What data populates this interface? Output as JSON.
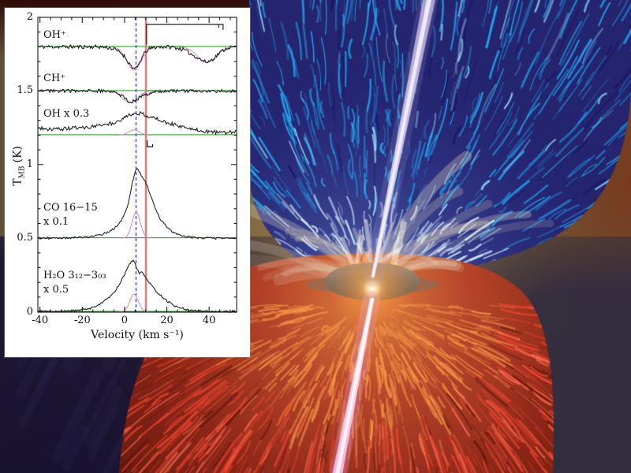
{
  "chart_data": {
    "type": "line",
    "title": "",
    "xlabel": "Velocity (km s⁻¹)",
    "ylabel": {
      "main": "T",
      "sub": "MB",
      "unit": "(K)"
    },
    "xlim": [
      -41,
      53
    ],
    "ylim": [
      0,
      2
    ],
    "grid": false,
    "x_ticks": [
      -40,
      -20,
      0,
      20,
      40
    ],
    "x_tick_labels": [
      "-40",
      "-20",
      "0",
      "20",
      "40"
    ],
    "x_minor_step": 5,
    "y_ticks": [
      0,
      0.5,
      1,
      1.5,
      2
    ],
    "y_tick_labels": [
      "0",
      "0.5",
      "1",
      "1.5",
      "2"
    ],
    "y_minor_step": 0.1,
    "line_color": "#1a1a1a",
    "baseline_color": "#1b9a1b",
    "model_color": "#d884c8",
    "markers": {
      "source_velocity_line": {
        "v": 5.4,
        "color": "#3a3ad2",
        "style": "dashed"
      },
      "red_line": {
        "v": 10.1,
        "color": "#cd6a6a",
        "style": "solid"
      },
      "hyperfine_bracket": {
        "v_from": 10.4,
        "v_to": 46.6,
        "T": 1.952,
        "tick_v": 44.5
      },
      "angle_marker": {
        "v": 10.7,
        "T_top": 1.165,
        "T_bottom": 1.122,
        "v_foot": 13.3
      }
    },
    "series": [
      {
        "label": "OH⁺",
        "baseline": 1.8,
        "noise": 0.013,
        "model": [
          {
            "center": 4.5,
            "amp": -0.155,
            "sigma": 3.5
          },
          {
            "center": 39,
            "amp": -0.105,
            "sigma": 4.5
          }
        ],
        "anchors": [
          [
            -41,
            1.8
          ],
          [
            -30,
            1.8
          ],
          [
            -20,
            1.8
          ],
          [
            -12,
            1.8
          ],
          [
            -8,
            1.795
          ],
          [
            -5,
            1.785
          ],
          [
            -2,
            1.762
          ],
          [
            0,
            1.735
          ],
          [
            2,
            1.69
          ],
          [
            4,
            1.657
          ],
          [
            5,
            1.645
          ],
          [
            6,
            1.662
          ],
          [
            7,
            1.69
          ],
          [
            8,
            1.72
          ],
          [
            10,
            1.768
          ],
          [
            12,
            1.788
          ],
          [
            15,
            1.798
          ],
          [
            20,
            1.8
          ],
          [
            24,
            1.795
          ],
          [
            28,
            1.78
          ],
          [
            31,
            1.755
          ],
          [
            34,
            1.73
          ],
          [
            37,
            1.705
          ],
          [
            39,
            1.695
          ],
          [
            41,
            1.71
          ],
          [
            43,
            1.732
          ],
          [
            45,
            1.76
          ],
          [
            47,
            1.78
          ],
          [
            49,
            1.795
          ],
          [
            53,
            1.8
          ]
        ]
      },
      {
        "label": "CH⁺",
        "baseline": 1.5,
        "noise": 0.011,
        "model": [
          {
            "center": 2.5,
            "amp": -0.08,
            "sigma": 3.5
          }
        ],
        "anchors": [
          [
            -41,
            1.5
          ],
          [
            -20,
            1.5
          ],
          [
            -10,
            1.5
          ],
          [
            -6,
            1.495
          ],
          [
            -3,
            1.48
          ],
          [
            0,
            1.455
          ],
          [
            2,
            1.432
          ],
          [
            3,
            1.425
          ],
          [
            5,
            1.437
          ],
          [
            7,
            1.455
          ],
          [
            9,
            1.47
          ],
          [
            12,
            1.487
          ],
          [
            15,
            1.495
          ],
          [
            20,
            1.5
          ],
          [
            30,
            1.5
          ],
          [
            41,
            1.5
          ],
          [
            53,
            1.5
          ]
        ]
      },
      {
        "label": "OH x 0.3",
        "baseline": 1.2,
        "noise": 0.013,
        "model": [
          {
            "center": 4.5,
            "amp": 0.035,
            "sigma": 2.5
          }
        ],
        "anchors": [
          [
            -41,
            1.252
          ],
          [
            -35,
            1.238
          ],
          [
            -30,
            1.242
          ],
          [
            -25,
            1.247
          ],
          [
            -20,
            1.251
          ],
          [
            -15,
            1.257
          ],
          [
            -10,
            1.266
          ],
          [
            -6,
            1.28
          ],
          [
            -3,
            1.3
          ],
          [
            0,
            1.317
          ],
          [
            2,
            1.332
          ],
          [
            4,
            1.345
          ],
          [
            6,
            1.35
          ],
          [
            8,
            1.345
          ],
          [
            10,
            1.336
          ],
          [
            13,
            1.32
          ],
          [
            16,
            1.305
          ],
          [
            20,
            1.285
          ],
          [
            24,
            1.269
          ],
          [
            28,
            1.255
          ],
          [
            32,
            1.241
          ],
          [
            36,
            1.23
          ],
          [
            40,
            1.224
          ],
          [
            45,
            1.216
          ],
          [
            50,
            1.219
          ],
          [
            53,
            1.221
          ]
        ]
      },
      {
        "label": "CO 16−15",
        "scale_label": "x 0.1",
        "baseline": 0.5,
        "noise": 0.007,
        "model": [
          {
            "center": 5.5,
            "amp": 0.175,
            "sigma": 2
          }
        ],
        "anchors": [
          [
            -41,
            0.5
          ],
          [
            -30,
            0.5
          ],
          [
            -25,
            0.502
          ],
          [
            -20,
            0.505
          ],
          [
            -16,
            0.51
          ],
          [
            -12,
            0.52
          ],
          [
            -9,
            0.535
          ],
          [
            -6,
            0.556
          ],
          [
            -4,
            0.576
          ],
          [
            -2,
            0.61
          ],
          [
            0,
            0.66
          ],
          [
            1,
            0.7
          ],
          [
            2,
            0.755
          ],
          [
            3,
            0.83
          ],
          [
            4,
            0.9
          ],
          [
            5,
            0.952
          ],
          [
            6,
            0.975
          ],
          [
            7,
            0.955
          ],
          [
            8,
            0.925
          ],
          [
            9,
            0.905
          ],
          [
            10,
            0.878
          ],
          [
            11,
            0.84
          ],
          [
            12,
            0.8
          ],
          [
            13,
            0.76
          ],
          [
            14,
            0.72
          ],
          [
            15,
            0.685
          ],
          [
            16,
            0.655
          ],
          [
            17,
            0.63
          ],
          [
            18,
            0.61
          ],
          [
            20,
            0.576
          ],
          [
            22,
            0.55
          ],
          [
            24,
            0.535
          ],
          [
            26,
            0.52
          ],
          [
            28,
            0.512
          ],
          [
            30,
            0.508
          ],
          [
            34,
            0.503
          ],
          [
            40,
            0.5
          ],
          [
            47,
            0.498
          ],
          [
            53,
            0.5
          ]
        ]
      },
      {
        "label": "H₂O 3₁₂−3₀₃",
        "scale_label": "x 0.5",
        "baseline": 0,
        "noise": 0.007,
        "model": [
          {
            "center": 4.5,
            "amp": 0.12,
            "sigma": 2
          }
        ],
        "anchors": [
          [
            -41,
            0.002
          ],
          [
            -30,
            0.003
          ],
          [
            -25,
            0.006
          ],
          [
            -20,
            0.012
          ],
          [
            -16,
            0.025
          ],
          [
            -12,
            0.05
          ],
          [
            -9,
            0.08
          ],
          [
            -6,
            0.115
          ],
          [
            -4,
            0.15
          ],
          [
            -2,
            0.2
          ],
          [
            0,
            0.25
          ],
          [
            1,
            0.285
          ],
          [
            2,
            0.315
          ],
          [
            3,
            0.34
          ],
          [
            4,
            0.35
          ],
          [
            5,
            0.325
          ],
          [
            6,
            0.285
          ],
          [
            7,
            0.26
          ],
          [
            8,
            0.268
          ],
          [
            9,
            0.255
          ],
          [
            10,
            0.23
          ],
          [
            11,
            0.21
          ],
          [
            12,
            0.19
          ],
          [
            14,
            0.155
          ],
          [
            16,
            0.125
          ],
          [
            18,
            0.1
          ],
          [
            20,
            0.075
          ],
          [
            22,
            0.055
          ],
          [
            24,
            0.04
          ],
          [
            27,
            0.025
          ],
          [
            30,
            0.012
          ],
          [
            34,
            0.006
          ],
          [
            40,
            0.003
          ],
          [
            47,
            0.002
          ],
          [
            53,
            0.003
          ]
        ]
      }
    ]
  },
  "artwork": {
    "palette": {
      "blue_lobe_streak": "#22aaf2",
      "blue_lobe_base": "#24246f",
      "blue_lobe_light": "#bfe9ff",
      "red_lobe_streak": "#ef4630",
      "red_lobe_base": "#731b10",
      "red_lobe_lit": "#d8753c",
      "background_olive": "#6e5c3b",
      "background_rust": "#7a3a1e",
      "top_maroon": "#2f0b07",
      "bottom_left_navy": "#181231",
      "bottom_right_purple": "#332d3f",
      "jet_upper_lavender": "#b2a6d8",
      "jet_lower_pink": "#f3b9dd",
      "jet_core_white": "#f6f2fa",
      "star_core": "#ffd9a0",
      "star_glow": "#f59b3c",
      "envelope_gray": "#9d8c76",
      "wisp_cream": "#eadbc4",
      "inset_background": "#ffffff"
    }
  }
}
